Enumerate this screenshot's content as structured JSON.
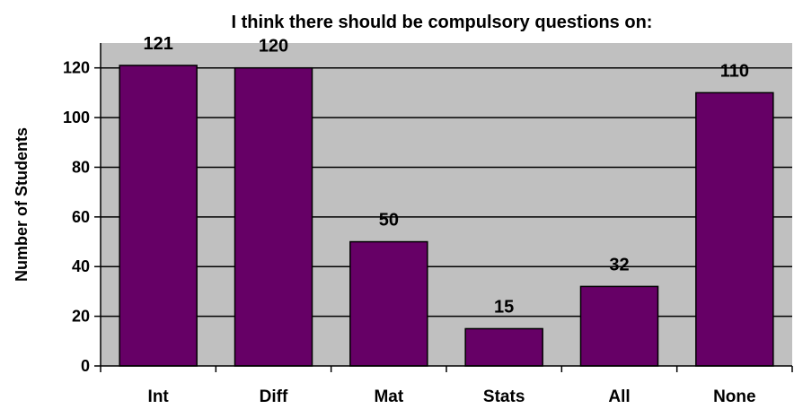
{
  "chart_data": {
    "type": "bar",
    "title": "I think there should be compulsory questions on:",
    "xlabel": "",
    "ylabel": "Number of Students",
    "categories": [
      "Int",
      "Diff",
      "Mat",
      "Stats",
      "All",
      "None"
    ],
    "values": [
      121,
      120,
      50,
      15,
      32,
      110
    ],
    "ylim": [
      0,
      130
    ],
    "yticks": [
      0,
      20,
      40,
      60,
      80,
      100,
      120
    ],
    "grid": true,
    "colors": {
      "bar": "#660066",
      "plot_background": "#c0c0c0",
      "gridline": "#000000"
    }
  }
}
